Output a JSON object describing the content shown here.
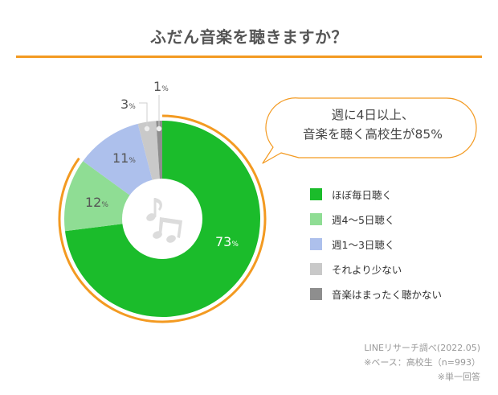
{
  "header": {
    "title": "ふだん音楽を聴きますか？"
  },
  "callout": {
    "line1": "週に4日以上、",
    "line2": "音楽を聴く高校生が85%",
    "highlight_percent": 85
  },
  "notes": {
    "source": "LINEリサーチ調べ(2022.05)",
    "base": "※ベース：高校生（n=993）",
    "answer_type": "※単一回答"
  },
  "colors": {
    "accent_orange": "#f39a21",
    "title_text": "#555555"
  },
  "labels": {
    "s0_value": "73",
    "s1_value": "12",
    "s2_value": "11",
    "s3_value": "3",
    "s4_value": "1",
    "unit": "%"
  },
  "legend": [
    {
      "label": "ほぼ毎日聴く",
      "color": "#1bbc2b"
    },
    {
      "label": "週4〜5日聴く",
      "color": "#8fdd94"
    },
    {
      "label": "週1〜3日聴く",
      "color": "#adc0ec"
    },
    {
      "label": "それより少ない",
      "color": "#c9c9c9"
    },
    {
      "label": "音楽はまったく聴かない",
      "color": "#8e8e8e"
    }
  ],
  "icon": {
    "center": "music-notes-icon"
  },
  "chart_data": {
    "type": "pie",
    "variant": "donut",
    "title": "ふだん音楽を聴きますか？",
    "categories": [
      "ほぼ毎日聴く",
      "週4〜5日聴く",
      "週1〜3日聴く",
      "それより少ない",
      "音楽はまったく聴かない"
    ],
    "values": [
      73,
      12,
      11,
      3,
      1
    ],
    "unit": "%",
    "colors": [
      "#1bbc2b",
      "#8fdd94",
      "#adc0ec",
      "#c9c9c9",
      "#8e8e8e"
    ],
    "start_angle": "12 o'clock, clockwise",
    "legend_position": "right",
    "annotation": {
      "text": "週に4日以上、音楽を聴く高校生が85%",
      "highlighted_categories": [
        "ほぼ毎日聴く",
        "週4〜5日聴く"
      ],
      "highlighted_total": 85
    },
    "source": "LINEリサーチ調べ(2022.05)",
    "base": "高校生（n=993）",
    "note": "単一回答"
  }
}
